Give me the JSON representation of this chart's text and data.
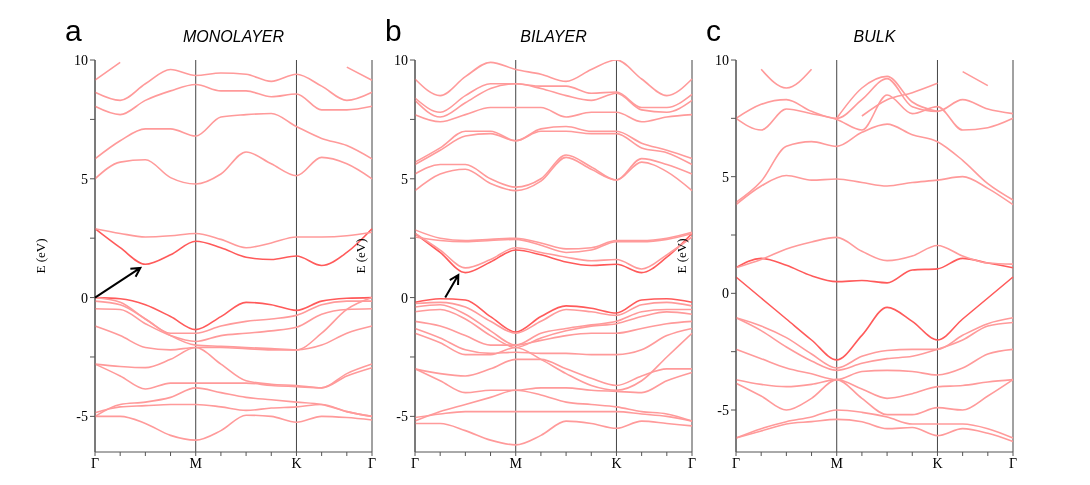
{
  "chart_data": [
    {
      "type": "line",
      "title": "MONOLAYER",
      "annotations": [
        "a"
      ],
      "ylabel": "E (eV)",
      "categories": [
        "Γ",
        null,
        null,
        null,
        "M",
        null,
        null,
        null,
        "K",
        null,
        null,
        "Γ"
      ],
      "grid": "x",
      "ylim": [
        -6.5,
        10
      ],
      "yticks": [
        -5,
        {
          "value": -2.5,
          "label": null
        },
        0,
        {
          "value": 2.5,
          "label": null
        },
        5,
        {
          "value": 7.5,
          "label": null
        },
        10
      ],
      "series": [
        {
          "color": "#ff5a5a",
          "values": [
            2.9,
            2.1,
            1.4,
            1.8,
            2.37,
            2.1,
            1.7,
            1.6,
            1.75,
            1.35,
            1.9,
            2.9
          ]
        },
        {
          "color": "#ff9a9a",
          "values": [
            2.9,
            2.7,
            2.55,
            2.6,
            2.7,
            2.45,
            2.1,
            2.3,
            2.55,
            2.55,
            2.6,
            2.75
          ]
        },
        {
          "color": "#ff9a9a",
          "values": [
            5.0,
            5.7,
            5.8,
            5.05,
            4.78,
            5.2,
            6.13,
            5.63,
            5.13,
            5.9,
            5.63,
            5.0
          ]
        },
        {
          "color": "#ff9a9a",
          "values": [
            5.84,
            6.6,
            7.1,
            7.1,
            6.8,
            7.6,
            7.7,
            7.75,
            7.2,
            6.7,
            6.4,
            5.84
          ]
        },
        {
          "color": "#ff9a9a",
          "values": [
            8.05,
            7.7,
            8.3,
            8.7,
            8.97,
            8.7,
            8.7,
            8.45,
            8.57,
            7.9,
            7.9,
            8.05
          ]
        },
        {
          "color": "#ff9a9a",
          "values": [
            8.64,
            8.3,
            9.0,
            9.6,
            9.35,
            9.45,
            9.4,
            9.1,
            9.4,
            8.9,
            8.3,
            8.64
          ]
        },
        {
          "color": "#ff9a9a",
          "values": [
            9.15,
            9.9,
            null,
            null,
            null,
            null,
            null,
            null,
            null,
            null,
            9.7,
            9.15
          ]
        },
        {
          "color": "#ff5a5a",
          "values": [
            0,
            -0.05,
            -0.3,
            -0.8,
            -1.35,
            -0.8,
            -0.2,
            -0.3,
            -0.54,
            -0.15,
            -0.03,
            0
          ]
        },
        {
          "color": "#ff9a9a",
          "values": [
            0,
            -0.2,
            -0.9,
            -1.5,
            -1.5,
            -1.2,
            -1.0,
            -0.9,
            -0.75,
            -0.3,
            -0.15,
            -0.15
          ]
        },
        {
          "color": "#ff9a9a",
          "values": [
            -0.47,
            -0.5,
            -1.1,
            -1.6,
            -1.85,
            -1.6,
            -1.5,
            -1.4,
            -1.25,
            -0.7,
            -0.5,
            -0.47
          ]
        },
        {
          "color": "#ff9a9a",
          "values": [
            -1.2,
            -1.6,
            -2.1,
            -2.2,
            -2.1,
            -2.1,
            -2.15,
            -2.2,
            -2.2,
            -2.0,
            -1.5,
            -1.2
          ]
        },
        {
          "color": "#ff9a9a",
          "values": [
            -0.15,
            -0.3,
            -0.9,
            -1.6,
            -2.0,
            -2.05,
            -2.1,
            -2.15,
            -2.2,
            -1.5,
            -0.5,
            0
          ]
        },
        {
          "color": "#ff9a9a",
          "values": [
            -2.8,
            -2.9,
            -2.95,
            -2.6,
            -2.1,
            -2.8,
            -3.5,
            -3.65,
            -3.7,
            -3.8,
            -3.2,
            -2.8
          ]
        },
        {
          "color": "#ff9a9a",
          "values": [
            -2.8,
            -3.3,
            -3.85,
            -3.6,
            -3.6,
            -3.6,
            -3.6,
            -3.7,
            -3.75,
            -3.8,
            -3.3,
            -2.95
          ]
        },
        {
          "color": "#ff9a9a",
          "values": [
            -5.0,
            -4.5,
            -4.4,
            -4.2,
            -3.8,
            -4.0,
            -4.2,
            -4.3,
            -4.4,
            -4.5,
            -4.8,
            -5.0
          ]
        },
        {
          "color": "#ff9a9a",
          "values": [
            -4.85,
            -4.6,
            -4.55,
            -4.5,
            -4.5,
            -4.6,
            -4.75,
            -4.65,
            -4.6,
            -4.5,
            -4.8,
            -5.0
          ]
        },
        {
          "color": "#ff9a9a",
          "values": [
            -5.0,
            -5.0,
            -5.3,
            -5.8,
            -6.0,
            -5.6,
            -4.95,
            -5.0,
            -5.25,
            -5.0,
            -5.05,
            -5.15
          ]
        }
      ]
    },
    {
      "type": "line",
      "title": "BILAYER",
      "annotations": [
        "b"
      ],
      "ylabel": "E (eV)",
      "categories": [
        "Γ",
        null,
        null,
        null,
        "M",
        null,
        null,
        null,
        "K",
        null,
        null,
        "Γ"
      ],
      "grid": "x",
      "ylim": [
        -6.5,
        10
      ],
      "yticks": [
        -5,
        {
          "value": -2.5,
          "label": null
        },
        0,
        {
          "value": 2.5,
          "label": null
        },
        5,
        {
          "value": 7.5,
          "label": null
        },
        10
      ],
      "series": [
        {
          "color": "#ff5a5a",
          "values": [
            2.7,
            1.9,
            1.05,
            1.5,
            2.0,
            1.8,
            1.5,
            1.35,
            1.4,
            1.05,
            1.7,
            2.7
          ]
        },
        {
          "color": "#ff9a9a",
          "values": [
            2.7,
            2.0,
            1.25,
            1.6,
            2.1,
            1.9,
            1.7,
            1.55,
            1.6,
            1.2,
            1.8,
            2.55
          ]
        },
        {
          "color": "#ff9a9a",
          "values": [
            2.55,
            2.4,
            2.35,
            2.4,
            2.45,
            2.2,
            1.9,
            2.0,
            2.35,
            2.35,
            2.45,
            2.7
          ]
        },
        {
          "color": "#ff9a9a",
          "values": [
            2.85,
            2.5,
            2.4,
            2.45,
            2.5,
            2.3,
            2.05,
            2.1,
            2.4,
            2.4,
            2.5,
            2.75
          ]
        },
        {
          "color": "#ff9a9a",
          "values": [
            4.5,
            5.2,
            5.4,
            4.8,
            4.5,
            4.9,
            5.9,
            5.4,
            4.95,
            5.7,
            5.3,
            4.5
          ]
        },
        {
          "color": "#ff9a9a",
          "values": [
            5.2,
            5.6,
            5.6,
            5.0,
            4.65,
            5.0,
            6.0,
            5.5,
            4.95,
            5.85,
            5.6,
            5.2
          ]
        },
        {
          "color": "#ff9a9a",
          "values": [
            5.6,
            6.2,
            6.8,
            6.9,
            6.6,
            7.0,
            7.0,
            6.9,
            6.9,
            6.3,
            6.1,
            5.6
          ]
        },
        {
          "color": "#ff9a9a",
          "values": [
            5.7,
            6.3,
            7.0,
            7.0,
            6.6,
            7.1,
            7.2,
            7.0,
            7.0,
            6.5,
            6.2,
            5.85
          ]
        },
        {
          "color": "#ff9a9a",
          "values": [
            7.7,
            7.4,
            7.7,
            8.0,
            8.0,
            8.0,
            7.6,
            7.8,
            7.8,
            7.4,
            7.6,
            7.7
          ]
        },
        {
          "color": "#ff9a9a",
          "values": [
            8.3,
            7.6,
            8.2,
            8.8,
            9.0,
            8.8,
            8.5,
            8.3,
            8.6,
            7.9,
            7.8,
            8.3
          ]
        },
        {
          "color": "#ff9a9a",
          "values": [
            8.4,
            7.8,
            8.5,
            9.0,
            9.0,
            8.9,
            8.9,
            8.6,
            8.65,
            8.0,
            8.0,
            8.55
          ]
        },
        {
          "color": "#ff9a9a",
          "values": [
            9.2,
            8.5,
            9.3,
            9.9,
            9.6,
            9.4,
            9.1,
            9.6,
            10,
            9.2,
            8.5,
            9.2
          ]
        },
        {
          "color": "#ff5a5a",
          "values": [
            -0.2,
            -0.05,
            -0.1,
            -0.8,
            -1.45,
            -0.8,
            -0.35,
            -0.45,
            -0.65,
            -0.1,
            -0.05,
            -0.2
          ]
        },
        {
          "color": "#ff9a9a",
          "values": [
            -0.25,
            -0.2,
            -0.4,
            -1.0,
            -1.5,
            -1.0,
            -0.5,
            -0.6,
            -0.75,
            -0.3,
            -0.2,
            -0.35
          ]
        },
        {
          "color": "#ff9a9a",
          "values": [
            -0.4,
            -0.3,
            -0.7,
            -1.4,
            -2.0,
            -1.5,
            -1.3,
            -1.15,
            -1.0,
            -0.6,
            -0.5,
            -0.5
          ]
        },
        {
          "color": "#ff9a9a",
          "values": [
            -0.6,
            -0.5,
            -0.9,
            -1.6,
            -2.1,
            -1.7,
            -1.4,
            -1.2,
            -1.1,
            -0.8,
            -0.6,
            -0.7
          ]
        },
        {
          "color": "#ff9a9a",
          "values": [
            -1.0,
            -1.2,
            -1.6,
            -2.0,
            -2.0,
            -1.8,
            -1.6,
            -1.5,
            -1.5,
            -1.3,
            -1.1,
            -1.0
          ]
        },
        {
          "color": "#ff9a9a",
          "values": [
            -1.3,
            -1.7,
            -2.2,
            -2.35,
            -2.3,
            -2.35,
            -2.35,
            -2.4,
            -2.4,
            -2.2,
            -1.6,
            -1.3
          ]
        },
        {
          "color": "#ff9a9a",
          "values": [
            -1.5,
            -1.9,
            -2.4,
            -2.4,
            -2.1,
            -2.6,
            -3.2,
            -3.7,
            -3.9,
            -3.5,
            -2.5,
            -1.5
          ]
        },
        {
          "color": "#ff9a9a",
          "values": [
            -3.0,
            -3.2,
            -3.3,
            -3.0,
            -2.6,
            -2.6,
            -3.0,
            -3.4,
            -3.7,
            -3.3,
            -3.0,
            -3.0
          ]
        },
        {
          "color": "#ff9a9a",
          "values": [
            -3.0,
            -3.5,
            -4.0,
            -3.9,
            -3.9,
            -3.8,
            -3.8,
            -3.9,
            -3.95,
            -4.0,
            -3.5,
            -3.15
          ]
        },
        {
          "color": "#ff9a9a",
          "values": [
            -5.2,
            -4.8,
            -4.5,
            -4.2,
            -3.9,
            -4.1,
            -4.4,
            -4.5,
            -4.6,
            -4.8,
            -4.9,
            -5.2
          ]
        },
        {
          "color": "#ff9a9a",
          "values": [
            -5.05,
            -4.9,
            -4.8,
            -4.8,
            -4.8,
            -4.8,
            -4.8,
            -4.8,
            -4.8,
            -4.9,
            -5.0,
            -5.2
          ]
        },
        {
          "color": "#ff9a9a",
          "values": [
            -5.3,
            -5.3,
            -5.6,
            -6.0,
            -6.2,
            -5.8,
            -5.2,
            -5.3,
            -5.5,
            -5.2,
            -5.3,
            -5.4
          ]
        }
      ]
    },
    {
      "type": "line",
      "title": "BULK",
      "annotations": [
        "c"
      ],
      "ylabel": "E (eV)",
      "categories": [
        "Γ",
        null,
        null,
        null,
        "M",
        null,
        null,
        null,
        "K",
        null,
        null,
        "Γ"
      ],
      "grid": "x",
      "ylim": [
        -6.8,
        10
      ],
      "yticks": [
        -5,
        {
          "value": -2.5,
          "label": null
        },
        0,
        {
          "value": 2.5,
          "label": null
        },
        5,
        {
          "value": 7.5,
          "label": null
        },
        10
      ],
      "series": [
        {
          "color": "#ff5a5a",
          "values": [
            0.7,
            -0.2,
            -1.1,
            -2.0,
            -2.85,
            -1.8,
            -0.6,
            -1.2,
            -2.0,
            -1.1,
            -0.2,
            0.7
          ]
        },
        {
          "color": "#ff5a5a",
          "values": [
            1.1,
            1.5,
            1.2,
            0.75,
            0.5,
            0.55,
            0.45,
            1.0,
            1.05,
            1.5,
            1.3,
            1.1
          ]
        },
        {
          "color": "#ff9a9a",
          "values": [
            1.1,
            1.45,
            1.9,
            2.2,
            2.4,
            1.8,
            1.4,
            1.6,
            2.05,
            1.6,
            1.3,
            1.25
          ]
        },
        {
          "color": "#ff9a9a",
          "values": [
            3.8,
            4.6,
            5.05,
            4.85,
            4.9,
            4.75,
            4.6,
            4.75,
            4.85,
            5.0,
            4.5,
            3.8
          ]
        },
        {
          "color": "#ff9a9a",
          "values": [
            3.9,
            4.8,
            6.3,
            6.5,
            6.3,
            6.9,
            7.25,
            6.8,
            6.5,
            5.7,
            4.7,
            4.0
          ]
        },
        {
          "color": "#ff9a9a",
          "values": [
            7.5,
            7.0,
            7.9,
            7.7,
            7.45,
            7.0,
            8.5,
            7.7,
            8.0,
            7.0,
            7.1,
            7.5
          ]
        },
        {
          "color": "#ff9a9a",
          "values": [
            7.5,
            8.1,
            8.3,
            7.8,
            7.5,
            8.3,
            9.2,
            8.0,
            7.8,
            8.3,
            7.9,
            7.7
          ]
        },
        {
          "color": "#ff9a9a",
          "values": [
            null,
            9.6,
            8.8,
            9.6,
            null,
            null,
            null,
            null,
            null,
            9.5,
            8.9,
            null
          ]
        },
        {
          "color": "#ff9a9a",
          "values": [
            null,
            null,
            null,
            null,
            7.5,
            8.8,
            9.3,
            8.2,
            7.8,
            null,
            null,
            null
          ]
        },
        {
          "color": "#ff9a9a",
          "values": [
            null,
            null,
            null,
            null,
            null,
            7.6,
            8.3,
            8.6,
            9.0,
            null,
            null,
            null
          ]
        },
        {
          "color": "#ff9a9a",
          "values": [
            -1.05,
            -1.4,
            -1.9,
            -2.6,
            -3.2,
            -2.7,
            -2.45,
            -2.4,
            -2.4,
            -1.8,
            -1.3,
            -1.05
          ]
        },
        {
          "color": "#ff9a9a",
          "values": [
            -1.05,
            -1.6,
            -2.3,
            -2.9,
            -3.3,
            -3.0,
            -2.8,
            -2.7,
            -2.4,
            -2.0,
            -1.4,
            -1.25
          ]
        },
        {
          "color": "#ff9a9a",
          "values": [
            -2.4,
            -2.8,
            -3.2,
            -3.45,
            -3.7,
            -3.35,
            -3.3,
            -3.35,
            -3.5,
            -3.2,
            -2.6,
            -2.4
          ]
        },
        {
          "color": "#ff9a9a",
          "values": [
            -3.7,
            -3.9,
            -4.0,
            -3.9,
            -3.7,
            -4.1,
            -4.5,
            -4.3,
            -4.0,
            -3.95,
            -3.8,
            -3.7
          ]
        },
        {
          "color": "#ff9a9a",
          "values": [
            -3.85,
            -4.4,
            -5.0,
            -4.5,
            -3.7,
            -4.5,
            -5.2,
            -5.2,
            -4.9,
            -5.0,
            -4.4,
            -3.7
          ]
        },
        {
          "color": "#ff9a9a",
          "values": [
            -6.2,
            -5.8,
            -5.5,
            -5.3,
            -5.0,
            -5.1,
            -5.3,
            -5.6,
            -5.6,
            -5.6,
            -5.8,
            -6.2
          ]
        },
        {
          "color": "#ff9a9a",
          "values": [
            -6.2,
            -5.9,
            -5.6,
            -5.5,
            -5.4,
            -5.5,
            -5.8,
            -5.75,
            -6.1,
            -5.8,
            -6.0,
            -6.35
          ]
        }
      ]
    }
  ]
}
